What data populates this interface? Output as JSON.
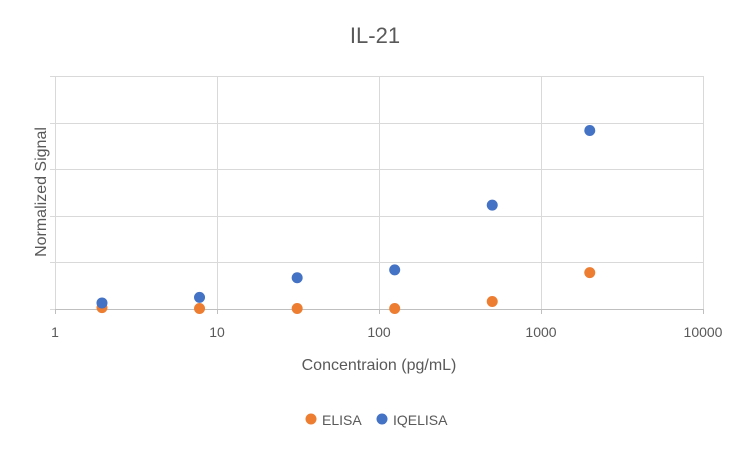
{
  "chart_data": {
    "type": "scatter",
    "title": "IL-21",
    "xlabel": "Concentraion (pg/mL)",
    "ylabel": "Normalized Signal",
    "x_scale": "log",
    "xlim": [
      1,
      10000
    ],
    "x_ticks": [
      "1",
      "10",
      "100",
      "1000",
      "10000"
    ],
    "ylim": [
      0,
      5
    ],
    "y_gridlines": [
      0,
      1,
      2,
      3,
      4,
      5
    ],
    "y_tick_labels_shown": false,
    "grid": true,
    "legend_position": "bottom",
    "series": [
      {
        "name": "ELISA",
        "color": "#ED7D31",
        "points": [
          {
            "x": 1.95,
            "y": 0.03
          },
          {
            "x": 7.8,
            "y": 0.01
          },
          {
            "x": 31.25,
            "y": 0.01
          },
          {
            "x": 125,
            "y": 0.01
          },
          {
            "x": 500,
            "y": 0.16
          },
          {
            "x": 2000,
            "y": 0.78
          }
        ]
      },
      {
        "name": "IQELISA",
        "color": "#4472C4",
        "points": [
          {
            "x": 1.95,
            "y": 0.13
          },
          {
            "x": 7.8,
            "y": 0.25
          },
          {
            "x": 31.25,
            "y": 0.67
          },
          {
            "x": 125,
            "y": 0.84
          },
          {
            "x": 500,
            "y": 2.23
          },
          {
            "x": 2000,
            "y": 3.83
          }
        ]
      }
    ]
  }
}
